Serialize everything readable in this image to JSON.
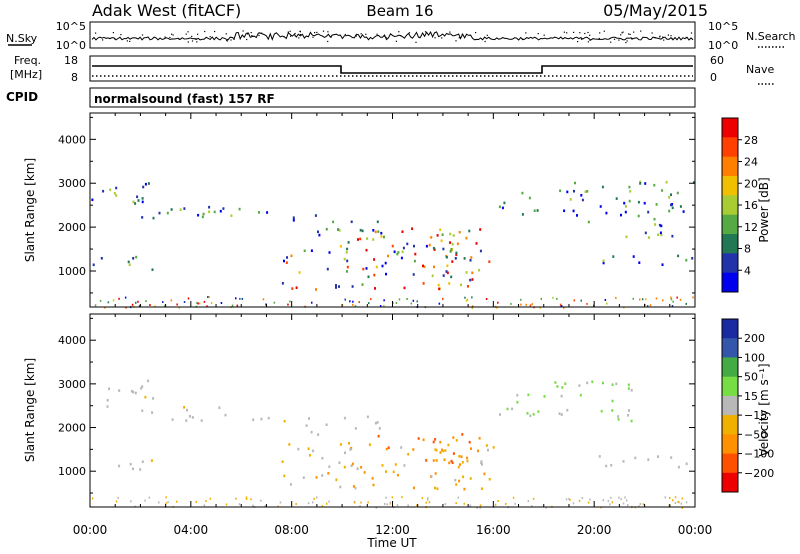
{
  "header": {
    "station": "Adak West (fitACF)",
    "beam": "Beam 16",
    "date": "05/May/2015"
  },
  "nsky_panel": {
    "left_label": "N.Sky",
    "left_ticks": [
      "10^5",
      "10^0"
    ],
    "right_label": "N.Search",
    "right_ticks": [
      "10^5",
      "10^0"
    ]
  },
  "freq_panel": {
    "left_label_1": "Freq.",
    "left_label_2": "[MHz]",
    "left_ticks": [
      "18",
      "8"
    ],
    "right_label": "Nave",
    "right_ticks": [
      "60",
      "0"
    ]
  },
  "cpid": {
    "label": "CPID",
    "value": "normalsound (fast) 157 RF"
  },
  "colors": {
    "power_scale": [
      "#0000ee",
      "#2233aa",
      "#227755",
      "#55aa44",
      "#aacc33",
      "#f0c000",
      "#ff8000",
      "#ff4000",
      "#ee0000"
    ],
    "velocity_scale": [
      "#ee0000",
      "#ff5000",
      "#ff9000",
      "#f0b000",
      "#b8b8b8",
      "#77dd44",
      "#44aa44",
      "#3355aa",
      "#1a2aa0"
    ]
  },
  "chart_data": [
    {
      "type": "heatmap",
      "title": "Power",
      "ylabel": "Slant Range [km]",
      "xlabel": "Time UT",
      "x_ticks": [
        "00:00",
        "04:00",
        "08:00",
        "12:00",
        "16:00",
        "20:00",
        "00:00"
      ],
      "xlim": [
        0,
        24
      ],
      "y_ticks": [
        "1000",
        "2000",
        "3000",
        "4000"
      ],
      "ylim": [
        180,
        4600
      ],
      "colorbar": {
        "label": "Power [dB]",
        "ticks": [
          "4",
          "8",
          "12",
          "16",
          "20",
          "24",
          "28"
        ],
        "range": [
          0,
          32
        ]
      },
      "echo_bands": [
        {
          "t0": 0.0,
          "t1": 2.5,
          "r0": 2500,
          "r1": 3100
        },
        {
          "t0": 2.0,
          "t1": 7.5,
          "r0": 2150,
          "r1": 2500
        },
        {
          "t0": 7.5,
          "t1": 11.5,
          "r0": 1800,
          "r1": 2300
        },
        {
          "t0": 0.0,
          "t1": 2.5,
          "r0": 1050,
          "r1": 1350
        },
        {
          "t0": 7.5,
          "t1": 16.0,
          "r0": 600,
          "r1": 1700
        },
        {
          "t0": 10.0,
          "t1": 15.5,
          "r0": 1300,
          "r1": 2000
        },
        {
          "t0": 13.5,
          "t1": 15.0,
          "r0": 1600,
          "r1": 2000
        },
        {
          "t0": 16.2,
          "t1": 18.0,
          "r0": 2300,
          "r1": 2900
        },
        {
          "t0": 18.2,
          "t1": 21.5,
          "r0": 2100,
          "r1": 3100
        },
        {
          "t0": 21.2,
          "t1": 24.0,
          "r0": 1750,
          "r1": 3100
        },
        {
          "t0": 20.0,
          "t1": 24.0,
          "r0": 1100,
          "r1": 1400
        }
      ]
    },
    {
      "type": "heatmap",
      "title": "Velocity",
      "ylabel": "Slant Range [km]",
      "xlabel": "Time UT",
      "x_ticks": [
        "00:00",
        "04:00",
        "08:00",
        "12:00",
        "16:00",
        "20:00",
        "00:00"
      ],
      "xlim": [
        0,
        24
      ],
      "y_ticks": [
        "1000",
        "2000",
        "3000",
        "4000"
      ],
      "ylim": [
        180,
        4600
      ],
      "colorbar": {
        "label": "Velocity [m s⁻¹]",
        "ticks": [
          "200",
          "100",
          "50",
          "15",
          "−15",
          "−50",
          "−100",
          "−200"
        ],
        "range": [
          -250,
          250
        ]
      },
      "echo_bands": [
        {
          "t0": 0.0,
          "t1": 2.5,
          "r0": 2500,
          "r1": 3100
        },
        {
          "t0": 2.0,
          "t1": 7.5,
          "r0": 2150,
          "r1": 2500
        },
        {
          "t0": 7.5,
          "t1": 11.5,
          "r0": 1800,
          "r1": 2300
        },
        {
          "t0": 0.0,
          "t1": 2.5,
          "r0": 1050,
          "r1": 1350
        },
        {
          "t0": 7.5,
          "t1": 16.0,
          "r0": 600,
          "r1": 1700
        },
        {
          "t0": 11.0,
          "t1": 15.5,
          "r0": 1200,
          "r1": 1900
        },
        {
          "t0": 16.2,
          "t1": 18.0,
          "r0": 2300,
          "r1": 2900
        },
        {
          "t0": 18.2,
          "t1": 21.5,
          "r0": 2100,
          "r1": 3100
        },
        {
          "t0": 20.0,
          "t1": 24.0,
          "r0": 1100,
          "r1": 1400
        }
      ]
    }
  ]
}
